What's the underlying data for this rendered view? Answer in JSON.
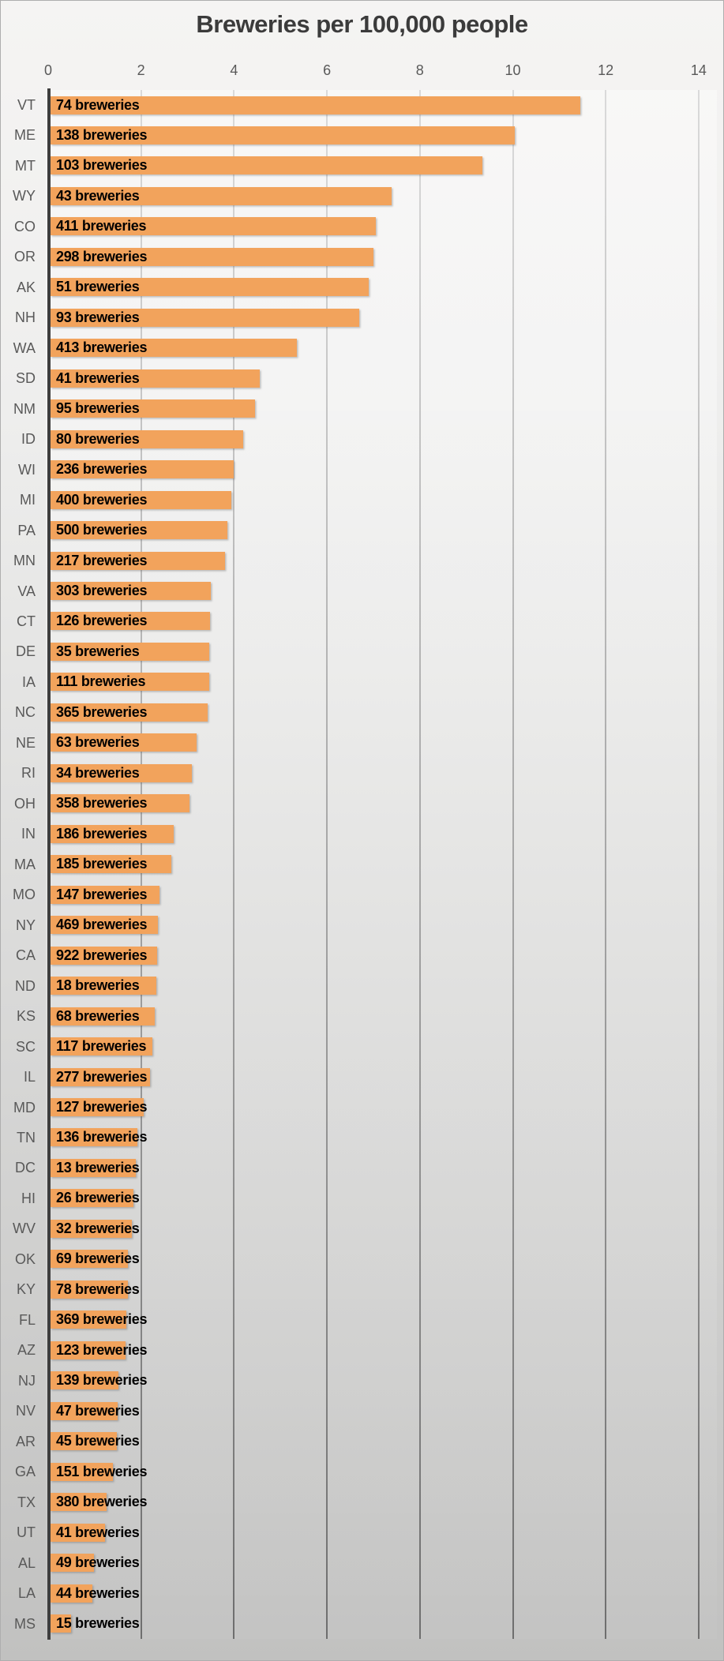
{
  "chart_data": {
    "type": "bar",
    "orientation": "horizontal",
    "title": "Breweries per 100,000 people",
    "xlabel": "",
    "ylabel": "",
    "x_ticks": [
      0,
      2,
      4,
      6,
      8,
      10,
      12,
      14
    ],
    "xlim": [
      0,
      14.4
    ],
    "grid": "vertical-major-gridlines",
    "legend": "none",
    "bar_color": "#f2a35c",
    "bar_label_format": "{count} breweries",
    "rows": [
      {
        "state": "VT",
        "count": 74,
        "label": "74 breweries",
        "per_100k": 11.45
      },
      {
        "state": "ME",
        "count": 138,
        "label": "138 breweries",
        "per_100k": 10.05
      },
      {
        "state": "MT",
        "count": 103,
        "label": "103 breweries",
        "per_100k": 9.35
      },
      {
        "state": "WY",
        "count": 43,
        "label": "43 breweries",
        "per_100k": 7.4
      },
      {
        "state": "CO",
        "count": 411,
        "label": "411 breweries",
        "per_100k": 7.05
      },
      {
        "state": "OR",
        "count": 298,
        "label": "298 breweries",
        "per_100k": 7.0
      },
      {
        "state": "AK",
        "count": 51,
        "label": "51 breweries",
        "per_100k": 6.9
      },
      {
        "state": "NH",
        "count": 93,
        "label": "93 breweries",
        "per_100k": 6.7
      },
      {
        "state": "WA",
        "count": 413,
        "label": "413 breweries",
        "per_100k": 5.35
      },
      {
        "state": "SD",
        "count": 41,
        "label": "41 breweries",
        "per_100k": 4.55
      },
      {
        "state": "NM",
        "count": 95,
        "label": "95 breweries",
        "per_100k": 4.45
      },
      {
        "state": "ID",
        "count": 80,
        "label": "80 breweries",
        "per_100k": 4.2
      },
      {
        "state": "WI",
        "count": 236,
        "label": "236 breweries",
        "per_100k": 4.0
      },
      {
        "state": "MI",
        "count": 400,
        "label": "400 breweries",
        "per_100k": 3.95
      },
      {
        "state": "PA",
        "count": 500,
        "label": "500 breweries",
        "per_100k": 3.85
      },
      {
        "state": "MN",
        "count": 217,
        "label": "217 breweries",
        "per_100k": 3.8
      },
      {
        "state": "VA",
        "count": 303,
        "label": "303 breweries",
        "per_100k": 3.5
      },
      {
        "state": "CT",
        "count": 126,
        "label": "126 breweries",
        "per_100k": 3.49
      },
      {
        "state": "DE",
        "count": 35,
        "label": "35 breweries",
        "per_100k": 3.47
      },
      {
        "state": "IA",
        "count": 111,
        "label": "111 breweries",
        "per_100k": 3.46
      },
      {
        "state": "NC",
        "count": 365,
        "label": "365 breweries",
        "per_100k": 3.44
      },
      {
        "state": "NE",
        "count": 63,
        "label": "63 breweries",
        "per_100k": 3.2
      },
      {
        "state": "RI",
        "count": 34,
        "label": "34 breweries",
        "per_100k": 3.1
      },
      {
        "state": "OH",
        "count": 358,
        "label": "358 breweries",
        "per_100k": 3.05
      },
      {
        "state": "IN",
        "count": 186,
        "label": "186 breweries",
        "per_100k": 2.7
      },
      {
        "state": "MA",
        "count": 185,
        "label": "185 breweries",
        "per_100k": 2.65
      },
      {
        "state": "MO",
        "count": 147,
        "label": "147 breweries",
        "per_100k": 2.4
      },
      {
        "state": "NY",
        "count": 469,
        "label": "469 breweries",
        "per_100k": 2.36
      },
      {
        "state": "CA",
        "count": 922,
        "label": "922 breweries",
        "per_100k": 2.34
      },
      {
        "state": "ND",
        "count": 18,
        "label": "18 breweries",
        "per_100k": 2.32
      },
      {
        "state": "KS",
        "count": 68,
        "label": "68 breweries",
        "per_100k": 2.3
      },
      {
        "state": "SC",
        "count": 117,
        "label": "117 breweries",
        "per_100k": 2.25
      },
      {
        "state": "IL",
        "count": 277,
        "label": "277 breweries",
        "per_100k": 2.2
      },
      {
        "state": "MD",
        "count": 127,
        "label": "127 breweries",
        "per_100k": 2.05
      },
      {
        "state": "TN",
        "count": 136,
        "label": "136 breweries",
        "per_100k": 1.92
      },
      {
        "state": "DC",
        "count": 13,
        "label": "13 breweries",
        "per_100k": 1.88
      },
      {
        "state": "HI",
        "count": 26,
        "label": "26 breweries",
        "per_100k": 1.84
      },
      {
        "state": "WV",
        "count": 32,
        "label": "32 breweries",
        "per_100k": 1.8
      },
      {
        "state": "OK",
        "count": 69,
        "label": "69 breweries",
        "per_100k": 1.72
      },
      {
        "state": "KY",
        "count": 78,
        "label": "78 breweries",
        "per_100k": 1.71
      },
      {
        "state": "FL",
        "count": 369,
        "label": "369 breweries",
        "per_100k": 1.68
      },
      {
        "state": "AZ",
        "count": 123,
        "label": "123 breweries",
        "per_100k": 1.67
      },
      {
        "state": "NJ",
        "count": 139,
        "label": "139 breweries",
        "per_100k": 1.51
      },
      {
        "state": "NV",
        "count": 47,
        "label": "47 breweries",
        "per_100k": 1.49
      },
      {
        "state": "AR",
        "count": 45,
        "label": "45 breweries",
        "per_100k": 1.48
      },
      {
        "state": "GA",
        "count": 151,
        "label": "151 breweries",
        "per_100k": 1.4
      },
      {
        "state": "TX",
        "count": 380,
        "label": "380 breweries",
        "per_100k": 1.26
      },
      {
        "state": "UT",
        "count": 41,
        "label": "41 breweries",
        "per_100k": 1.23
      },
      {
        "state": "AL",
        "count": 49,
        "label": "49 breweries",
        "per_100k": 0.98
      },
      {
        "state": "LA",
        "count": 44,
        "label": "44 breweries",
        "per_100k": 0.95
      },
      {
        "state": "MS",
        "count": 15,
        "label": "15 breweries",
        "per_100k": 0.5
      }
    ]
  },
  "colors": {
    "bar": "#f2a35c",
    "title_text": "#3b3b3b",
    "axis_text": "#595959",
    "bar_label_text": "#000000",
    "axis_line": "#3e3e3e",
    "gridline_top": "#dadada",
    "gridline_bottom": "#6e6e6e",
    "background_top": "#f5f4f3",
    "background_bottom": "#c1c1c0"
  }
}
